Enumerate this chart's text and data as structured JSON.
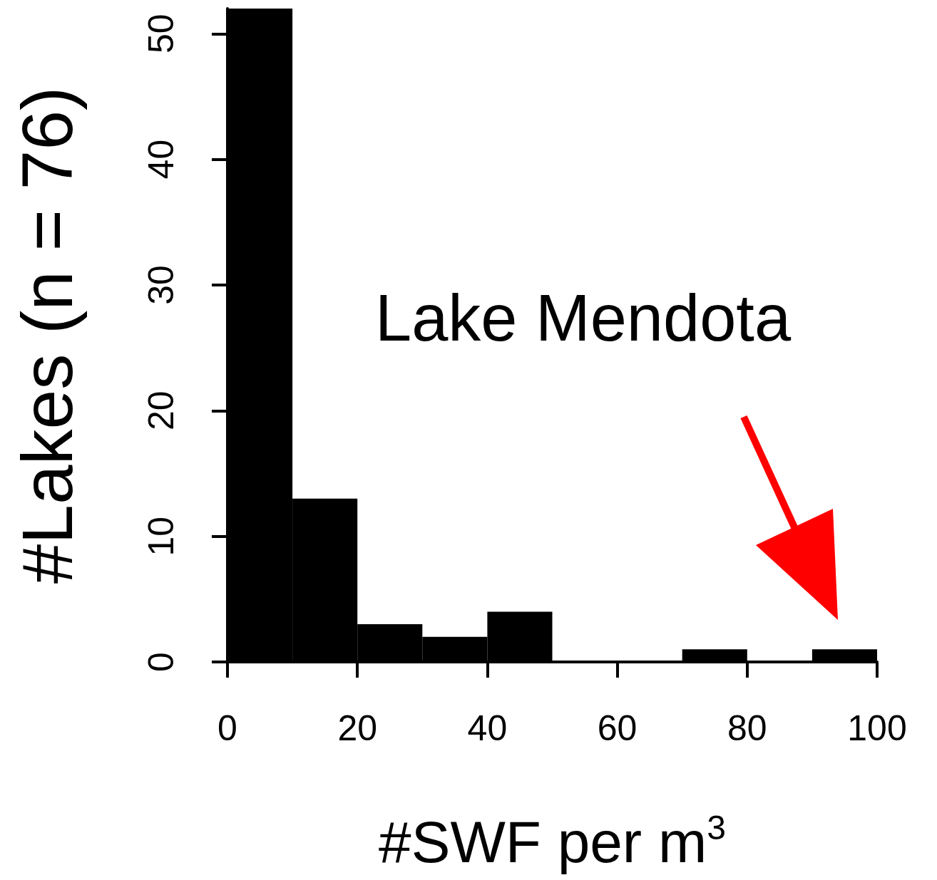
{
  "chart_data": {
    "type": "histogram",
    "xlabel": "#SWF per m$^{3}$",
    "ylabel": "#Lakes (n = 76)",
    "bins": [
      0,
      10,
      20,
      30,
      40,
      50,
      60,
      70,
      80,
      90,
      100
    ],
    "values": [
      52,
      13,
      3,
      2,
      4,
      0,
      0,
      1,
      0,
      1
    ],
    "color": "#000000",
    "xlim": [
      0,
      100
    ],
    "xticks": [
      0,
      20,
      40,
      60,
      80,
      100
    ],
    "ylim": [
      0,
      52
    ],
    "yticks": [
      0,
      10,
      20,
      30,
      40,
      50
    ],
    "annotations": [
      "Lake Mendota"
    ]
  }
}
